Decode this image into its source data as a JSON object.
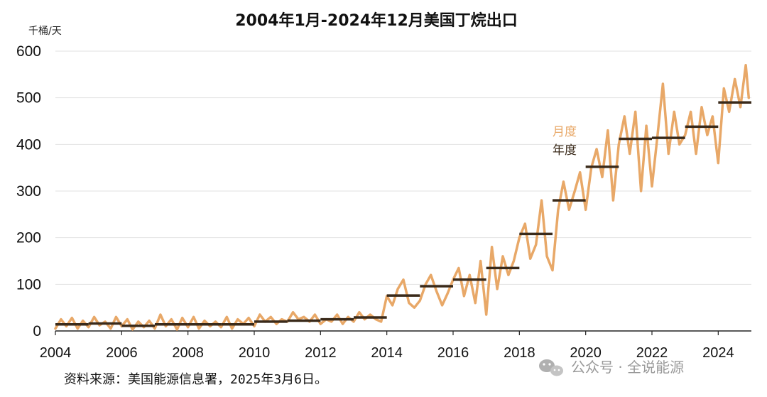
{
  "chart_data": {
    "type": "line",
    "title": "2004年1月-2024年12月美国丁烷出口",
    "unit_label": "千桶/天",
    "ylim": [
      0,
      600
    ],
    "yticks": [
      0,
      100,
      200,
      300,
      400,
      500,
      600
    ],
    "xlim": [
      2004,
      2025
    ],
    "xticks": [
      2004,
      2006,
      2008,
      2010,
      2012,
      2014,
      2016,
      2018,
      2020,
      2022,
      2024
    ],
    "grid": true,
    "legend_placement": "center, near series",
    "series": [
      {
        "name": "月度",
        "color": "#E8A868",
        "kind": "monthly",
        "x": [
          2004.0,
          2004.17,
          2004.33,
          2004.5,
          2004.67,
          2004.83,
          2005.0,
          2005.17,
          2005.33,
          2005.5,
          2005.67,
          2005.83,
          2006.0,
          2006.17,
          2006.33,
          2006.5,
          2006.67,
          2006.83,
          2007.0,
          2007.17,
          2007.33,
          2007.5,
          2007.67,
          2007.83,
          2008.0,
          2008.17,
          2008.33,
          2008.5,
          2008.67,
          2008.83,
          2009.0,
          2009.17,
          2009.33,
          2009.5,
          2009.67,
          2009.83,
          2010.0,
          2010.17,
          2010.33,
          2010.5,
          2010.67,
          2010.83,
          2011.0,
          2011.17,
          2011.33,
          2011.5,
          2011.67,
          2011.83,
          2012.0,
          2012.17,
          2012.33,
          2012.5,
          2012.67,
          2012.83,
          2013.0,
          2013.17,
          2013.33,
          2013.5,
          2013.67,
          2013.83,
          2014.0,
          2014.17,
          2014.33,
          2014.5,
          2014.67,
          2014.83,
          2015.0,
          2015.17,
          2015.33,
          2015.5,
          2015.67,
          2015.83,
          2016.0,
          2016.17,
          2016.33,
          2016.5,
          2016.67,
          2016.83,
          2017.0,
          2017.17,
          2017.33,
          2017.5,
          2017.67,
          2017.83,
          2018.0,
          2018.17,
          2018.33,
          2018.5,
          2018.67,
          2018.83,
          2019.0,
          2019.17,
          2019.33,
          2019.5,
          2019.67,
          2019.83,
          2020.0,
          2020.17,
          2020.33,
          2020.5,
          2020.67,
          2020.83,
          2021.0,
          2021.17,
          2021.33,
          2021.5,
          2021.67,
          2021.83,
          2022.0,
          2022.17,
          2022.33,
          2022.5,
          2022.67,
          2022.83,
          2023.0,
          2023.17,
          2023.33,
          2023.5,
          2023.67,
          2023.83,
          2024.0,
          2024.17,
          2024.33,
          2024.5,
          2024.67,
          2024.83,
          2024.92
        ],
        "values": [
          5,
          25,
          10,
          28,
          5,
          22,
          8,
          30,
          12,
          20,
          5,
          30,
          10,
          25,
          3,
          20,
          8,
          22,
          5,
          35,
          10,
          25,
          3,
          28,
          8,
          30,
          5,
          22,
          10,
          20,
          8,
          30,
          5,
          25,
          15,
          28,
          10,
          35,
          20,
          30,
          15,
          25,
          20,
          40,
          25,
          30,
          20,
          35,
          15,
          25,
          20,
          35,
          15,
          30,
          20,
          40,
          25,
          35,
          25,
          20,
          75,
          55,
          90,
          110,
          60,
          50,
          65,
          100,
          120,
          85,
          55,
          80,
          110,
          135,
          75,
          120,
          60,
          150,
          35,
          180,
          90,
          160,
          120,
          150,
          200,
          230,
          155,
          185,
          280,
          160,
          130,
          260,
          320,
          260,
          300,
          340,
          260,
          350,
          390,
          330,
          430,
          280,
          400,
          460,
          380,
          470,
          300,
          440,
          310,
          420,
          530,
          380,
          470,
          400,
          420,
          470,
          380,
          480,
          420,
          460,
          360,
          520,
          470,
          540,
          480,
          570,
          500
        ]
      },
      {
        "name": "年度",
        "color": "#3a2a1a",
        "kind": "annual",
        "years": [
          2004,
          2005,
          2006,
          2007,
          2008,
          2009,
          2010,
          2011,
          2012,
          2013,
          2014,
          2015,
          2016,
          2017,
          2018,
          2019,
          2020,
          2021,
          2022,
          2023,
          2024
        ],
        "values": [
          14,
          16,
          11,
          14,
          14,
          14,
          20,
          22,
          25,
          29,
          76,
          96,
          110,
          135,
          208,
          280,
          352,
          412,
          414,
          438,
          490
        ]
      }
    ]
  },
  "source_note": "资料来源：美国能源信息署，2025年3月6日。",
  "watermark": "公众号 · 全说能源"
}
